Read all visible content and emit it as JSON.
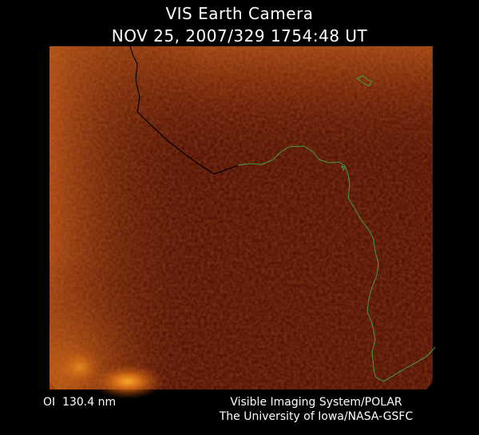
{
  "header": {
    "title": "VIS Earth Camera",
    "timestamp": "NOV 25, 2007/329 1754:48 UT"
  },
  "footer": {
    "filter": "OI  130.4 nm",
    "instrument": "Visible Imaging System/POLAR",
    "credit": "The University of Iowa/NASA-GSFC"
  }
}
